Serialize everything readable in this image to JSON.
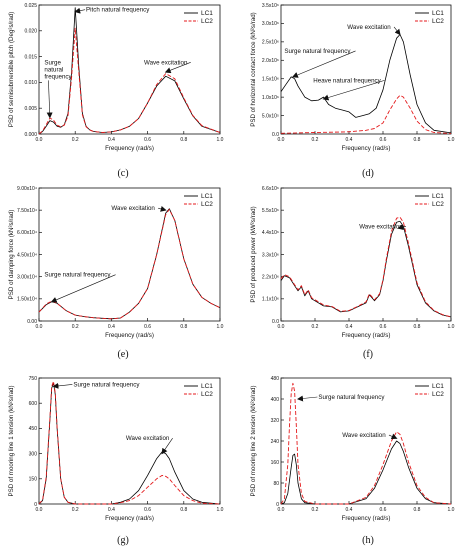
{
  "figure": {
    "captions": [
      "(c)",
      "(d)",
      "(e)",
      "(f)",
      "(g)",
      "(h)"
    ]
  },
  "chart_data": [
    {
      "type": "line",
      "caption": "(c)",
      "xlabel": "Frequency (rad/s)",
      "ylabel": "PSD of semisubmersible pitch (Deg²s/rad)",
      "xlim": [
        0,
        1.0
      ],
      "ylim": [
        0,
        0.025
      ],
      "xticks": [
        "0.0",
        "0.2",
        "0.4",
        "0.6",
        "0.8",
        "1.0"
      ],
      "yticks": [
        "0.000",
        "0.005",
        "0.010",
        "0.015",
        "0.020",
        "0.025"
      ],
      "legend": [
        "LC1",
        "LC2"
      ],
      "legend_position": "top-right",
      "annotations": [
        {
          "text": "Pitch natural frequency",
          "x": 0.2,
          "y": 0.0237,
          "tx": 0.26,
          "ty": 0.0237,
          "arrow": true
        },
        {
          "text": "Surge\nnatural\nfrequency",
          "x": 0.06,
          "y": 0.0032,
          "tx": 0.03,
          "ty": 0.0135,
          "arrow": true
        },
        {
          "text": "Wave excitation",
          "x": 0.7,
          "y": 0.012,
          "tx": 0.58,
          "ty": 0.0135,
          "arrow": true
        }
      ],
      "series": [
        {
          "name": "LC1",
          "x": [
            0,
            0.02,
            0.04,
            0.06,
            0.08,
            0.1,
            0.12,
            0.14,
            0.16,
            0.18,
            0.2,
            0.22,
            0.24,
            0.26,
            0.28,
            0.3,
            0.35,
            0.4,
            0.45,
            0.5,
            0.55,
            0.6,
            0.65,
            0.7,
            0.75,
            0.8,
            0.85,
            0.9,
            1.0
          ],
          "y": [
            0,
            0.0005,
            0.0015,
            0.0026,
            0.0023,
            0.0015,
            0.0013,
            0.0018,
            0.004,
            0.012,
            0.0245,
            0.013,
            0.004,
            0.0015,
            0.0008,
            0.0005,
            0.0003,
            0.0004,
            0.0008,
            0.0015,
            0.003,
            0.006,
            0.0093,
            0.0112,
            0.0103,
            0.0068,
            0.0035,
            0.0015,
            0.0003
          ]
        },
        {
          "name": "LC2",
          "x": [
            0,
            0.02,
            0.04,
            0.06,
            0.08,
            0.1,
            0.12,
            0.14,
            0.16,
            0.18,
            0.2,
            0.22,
            0.24,
            0.26,
            0.28,
            0.3,
            0.35,
            0.4,
            0.45,
            0.5,
            0.55,
            0.6,
            0.65,
            0.7,
            0.75,
            0.8,
            0.85,
            0.9,
            1.0
          ],
          "y": [
            0,
            0.0006,
            0.0018,
            0.0031,
            0.0027,
            0.0017,
            0.0014,
            0.0017,
            0.0035,
            0.011,
            0.0205,
            0.012,
            0.0037,
            0.0014,
            0.0008,
            0.0005,
            0.0003,
            0.0004,
            0.0008,
            0.0015,
            0.003,
            0.006,
            0.0096,
            0.0117,
            0.0107,
            0.007,
            0.0036,
            0.0016,
            0.0003
          ]
        }
      ]
    },
    {
      "type": "line",
      "caption": "(d)",
      "xlabel": "Frequency (rad/s)",
      "ylabel": "PSD of horizontal contact force (kN²s/rad)",
      "xlim": [
        0,
        1.0
      ],
      "ylim": [
        0,
        3500000
      ],
      "xticks": [
        "0.0",
        "0.2",
        "0.4",
        "0.6",
        "0.8",
        "1.0"
      ],
      "yticks": [
        "0.0",
        "5.0x10⁵",
        "1.0x10⁶",
        "1.5x10⁶",
        "2.0x10⁶",
        "2.5x10⁶",
        "3.0x10⁶",
        "3.5x10⁶"
      ],
      "legend": [
        "LC1",
        "LC2"
      ],
      "legend_position": "top-right",
      "annotations": [
        {
          "text": "Wave excitation",
          "x": 0.7,
          "y": 2700000,
          "tx": 0.39,
          "ty": 2850000,
          "arrow": true
        },
        {
          "text": "Surge natural frequency",
          "x": 0.07,
          "y": 1550000,
          "tx": 0.02,
          "ty": 2200000,
          "arrow": true
        },
        {
          "text": "Heave natural frequency",
          "x": 0.25,
          "y": 950000,
          "tx": 0.19,
          "ty": 1400000,
          "arrow": true
        }
      ],
      "series": [
        {
          "name": "LC1",
          "x": [
            0,
            0.03,
            0.06,
            0.08,
            0.1,
            0.14,
            0.18,
            0.22,
            0.25,
            0.28,
            0.32,
            0.36,
            0.4,
            0.44,
            0.48,
            0.52,
            0.56,
            0.6,
            0.64,
            0.68,
            0.7,
            0.72,
            0.76,
            0.8,
            0.85,
            0.9,
            1.0
          ],
          "y": [
            1150000,
            1350000,
            1550000,
            1500000,
            1300000,
            1000000,
            900000,
            920000,
            1000000,
            800000,
            700000,
            650000,
            600000,
            450000,
            500000,
            550000,
            700000,
            1200000,
            2000000,
            2600000,
            2700000,
            2500000,
            1600000,
            800000,
            300000,
            100000,
            30000
          ]
        },
        {
          "name": "LC2",
          "x": [
            0,
            0.1,
            0.2,
            0.3,
            0.4,
            0.5,
            0.55,
            0.6,
            0.64,
            0.68,
            0.7,
            0.72,
            0.76,
            0.8,
            0.85,
            0.9,
            1.0
          ],
          "y": [
            20000,
            30000,
            40000,
            50000,
            60000,
            100000,
            150000,
            300000,
            650000,
            950000,
            1050000,
            1000000,
            700000,
            350000,
            120000,
            40000,
            10000
          ]
        }
      ]
    },
    {
      "type": "line",
      "caption": "(e)",
      "xlabel": "Frequency (rad/s)",
      "ylabel": "PSD of damping force (kN²s/rad)",
      "xlim": [
        0,
        1.0
      ],
      "ylim": [
        0,
        90000
      ],
      "xticks": [
        "0.0",
        "0.2",
        "0.4",
        "0.6",
        "0.8",
        "1.0"
      ],
      "yticks": [
        "0.00",
        "1.50x10⁴",
        "3.00x10⁴",
        "4.50x10⁴",
        "6.00x10⁴",
        "7.50x10⁴",
        "9.00x10⁴"
      ],
      "legend": [
        "LC1",
        "LC2"
      ],
      "legend_position": "top-right",
      "annotations": [
        {
          "text": "Wave excitation",
          "x": 0.7,
          "y": 75000,
          "tx": 0.4,
          "ty": 75000,
          "arrow": true
        },
        {
          "text": "Surge natural frequency",
          "x": 0.07,
          "y": 13000,
          "tx": 0.03,
          "ty": 30000,
          "arrow": true
        }
      ],
      "series": [
        {
          "name": "LC1",
          "x": [
            0,
            0.04,
            0.07,
            0.1,
            0.15,
            0.2,
            0.25,
            0.3,
            0.35,
            0.4,
            0.45,
            0.5,
            0.55,
            0.6,
            0.65,
            0.7,
            0.72,
            0.75,
            0.8,
            0.85,
            0.9,
            0.95,
            1.0
          ],
          "y": [
            6000,
            11000,
            13000,
            12000,
            7000,
            4000,
            3000,
            2200,
            1800,
            1500,
            2000,
            6000,
            12000,
            22000,
            45000,
            73000,
            76000,
            68000,
            42000,
            25000,
            16000,
            12000,
            9000
          ]
        },
        {
          "name": "LC2",
          "x": [
            0,
            0.04,
            0.07,
            0.1,
            0.15,
            0.2,
            0.25,
            0.3,
            0.35,
            0.4,
            0.45,
            0.5,
            0.55,
            0.6,
            0.65,
            0.7,
            0.72,
            0.75,
            0.8,
            0.85,
            0.9,
            0.95,
            1.0
          ],
          "y": [
            6000,
            11500,
            13500,
            12000,
            7000,
            4000,
            3000,
            2200,
            1800,
            1500,
            2000,
            6000,
            12000,
            22000,
            45000,
            72000,
            75500,
            68000,
            42000,
            25000,
            16000,
            12000,
            9000
          ]
        }
      ]
    },
    {
      "type": "line",
      "caption": "(f)",
      "xlabel": "Frequency (rad/s)",
      "ylabel": "PSD of produced power (kW²s/rad)",
      "xlim": [
        0,
        1.0
      ],
      "ylim": [
        0,
        6600000
      ],
      "xticks": [
        "0.0",
        "0.2",
        "0.4",
        "0.6",
        "0.8",
        "1.0"
      ],
      "yticks": [
        "0.0",
        "1.1x10⁶",
        "2.2x10⁶",
        "3.3x10⁶",
        "4.4x10⁶",
        "5.5x10⁶",
        "6.6x10⁶"
      ],
      "legend": [
        "LC1",
        "LC2"
      ],
      "legend_position": "top-right",
      "annotations": [
        {
          "text": "Wave excitation",
          "x": 0.69,
          "y": 4600000,
          "tx": 0.46,
          "ty": 4600000,
          "arrow": true
        }
      ],
      "series": [
        {
          "name": "LC1",
          "x": [
            0,
            0.02,
            0.05,
            0.08,
            0.1,
            0.12,
            0.14,
            0.16,
            0.18,
            0.2,
            0.25,
            0.3,
            0.35,
            0.4,
            0.45,
            0.5,
            0.52,
            0.55,
            0.58,
            0.6,
            0.62,
            0.65,
            0.68,
            0.7,
            0.72,
            0.75,
            0.8,
            0.85,
            0.9,
            0.95,
            1.0
          ],
          "y": [
            2000000,
            2250000,
            2150000,
            1750000,
            1500000,
            1700000,
            1250000,
            1500000,
            1100000,
            1000000,
            750000,
            700000,
            450000,
            500000,
            700000,
            900000,
            1300000,
            1000000,
            1300000,
            2000000,
            3000000,
            4300000,
            4900000,
            4950000,
            4700000,
            3700000,
            1800000,
            900000,
            500000,
            300000,
            200000
          ]
        },
        {
          "name": "LC2",
          "x": [
            0,
            0.02,
            0.05,
            0.08,
            0.1,
            0.12,
            0.14,
            0.16,
            0.18,
            0.2,
            0.25,
            0.3,
            0.35,
            0.4,
            0.45,
            0.5,
            0.52,
            0.55,
            0.58,
            0.6,
            0.62,
            0.65,
            0.68,
            0.7,
            0.72,
            0.75,
            0.8,
            0.85,
            0.9,
            0.95,
            1.0
          ],
          "y": [
            2100000,
            2300000,
            2200000,
            1800000,
            1550000,
            1750000,
            1300000,
            1550000,
            1150000,
            1050000,
            800000,
            720000,
            480000,
            520000,
            720000,
            950000,
            1350000,
            1050000,
            1350000,
            2050000,
            3100000,
            4450000,
            5100000,
            5150000,
            4900000,
            3850000,
            1900000,
            950000,
            520000,
            320000,
            210000
          ]
        }
      ]
    },
    {
      "type": "line",
      "caption": "(g)",
      "xlabel": "Frequency (rad/s)",
      "ylabel": "PSD of mooring line 1 tension (kN²s/rad)",
      "xlim": [
        0,
        1.0
      ],
      "ylim": [
        0,
        750
      ],
      "xticks": [
        "0.0",
        "0.2",
        "0.4",
        "0.6",
        "0.8",
        "1.0"
      ],
      "yticks": [
        "0",
        "150",
        "300",
        "450",
        "600",
        "750"
      ],
      "legend": [
        "LC1",
        "LC2"
      ],
      "legend_position": "top-right",
      "annotations": [
        {
          "text": "Surge natural frequency",
          "x": 0.08,
          "y": 700,
          "tx": 0.19,
          "ty": 700,
          "arrow": true
        },
        {
          "text": "Wave excitation",
          "x": 0.68,
          "y": 300,
          "tx": 0.48,
          "ty": 380,
          "arrow": true
        }
      ],
      "series": [
        {
          "name": "LC1",
          "x": [
            0,
            0.02,
            0.04,
            0.06,
            0.07,
            0.08,
            0.09,
            0.1,
            0.12,
            0.14,
            0.16,
            0.2,
            0.3,
            0.4,
            0.45,
            0.5,
            0.55,
            0.6,
            0.65,
            0.68,
            0.7,
            0.72,
            0.75,
            0.8,
            0.85,
            0.9,
            1.0
          ],
          "y": [
            0,
            20,
            150,
            500,
            690,
            720,
            650,
            450,
            150,
            40,
            10,
            0,
            0,
            0,
            10,
            30,
            80,
            170,
            270,
            310,
            300,
            270,
            190,
            80,
            30,
            10,
            0
          ]
        },
        {
          "name": "LC2",
          "x": [
            0,
            0.02,
            0.04,
            0.06,
            0.07,
            0.08,
            0.09,
            0.1,
            0.12,
            0.14,
            0.16,
            0.2,
            0.3,
            0.4,
            0.45,
            0.5,
            0.55,
            0.6,
            0.65,
            0.68,
            0.7,
            0.72,
            0.75,
            0.8,
            0.85,
            0.9,
            1.0
          ],
          "y": [
            0,
            25,
            160,
            510,
            700,
            730,
            660,
            460,
            150,
            40,
            10,
            0,
            0,
            0,
            8,
            20,
            50,
            100,
            150,
            170,
            165,
            150,
            110,
            50,
            20,
            5,
            0
          ]
        }
      ]
    },
    {
      "type": "line",
      "caption": "(h)",
      "xlabel": "Frequency (rad/s)",
      "ylabel": "PSD of mooring line 2 tension (kN²s/rad)",
      "xlim": [
        0,
        1.0
      ],
      "ylim": [
        0,
        480
      ],
      "xticks": [
        "0.0",
        "0.2",
        "0.4",
        "0.6",
        "0.8",
        "1.0"
      ],
      "yticks": [
        "0",
        "80",
        "160",
        "240",
        "320",
        "400",
        "480"
      ],
      "legend": [
        "LC1",
        "LC2"
      ],
      "legend_position": "top-right",
      "annotations": [
        {
          "text": "Surge natural frequency",
          "x": 0.1,
          "y": 400,
          "tx": 0.22,
          "ty": 400,
          "arrow": true
        },
        {
          "text": "Wave excitation",
          "x": 0.68,
          "y": 250,
          "tx": 0.36,
          "ty": 255,
          "arrow": true
        }
      ],
      "series": [
        {
          "name": "LC1",
          "x": [
            0,
            0.02,
            0.04,
            0.06,
            0.07,
            0.08,
            0.09,
            0.1,
            0.12,
            0.14,
            0.2,
            0.3,
            0.4,
            0.5,
            0.55,
            0.6,
            0.65,
            0.68,
            0.7,
            0.72,
            0.75,
            0.8,
            0.85,
            0.9,
            1.0
          ],
          "y": [
            0,
            5,
            40,
            140,
            185,
            190,
            150,
            80,
            20,
            5,
            0,
            0,
            0,
            20,
            60,
            130,
            210,
            240,
            230,
            200,
            140,
            60,
            20,
            5,
            0
          ]
        },
        {
          "name": "LC2",
          "x": [
            0,
            0.02,
            0.04,
            0.05,
            0.06,
            0.07,
            0.08,
            0.09,
            0.1,
            0.12,
            0.14,
            0.2,
            0.3,
            0.4,
            0.5,
            0.55,
            0.6,
            0.65,
            0.68,
            0.7,
            0.72,
            0.75,
            0.8,
            0.85,
            0.9,
            1.0
          ],
          "y": [
            0,
            20,
            150,
            300,
            420,
            460,
            430,
            300,
            150,
            40,
            10,
            0,
            0,
            0,
            25,
            70,
            150,
            240,
            275,
            265,
            230,
            160,
            70,
            25,
            5,
            0
          ]
        }
      ]
    }
  ]
}
